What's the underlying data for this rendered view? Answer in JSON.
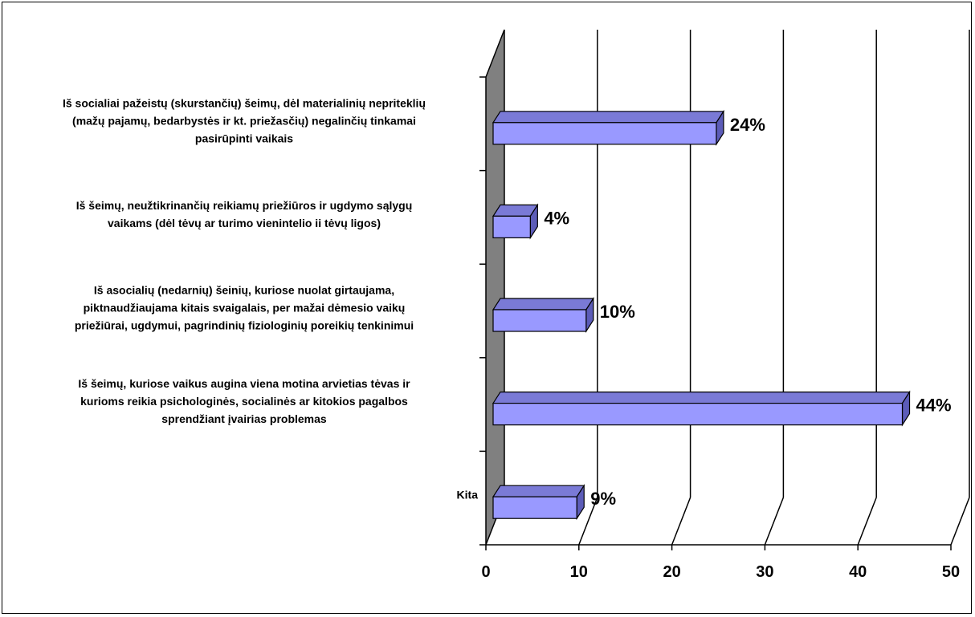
{
  "chart_data": {
    "type": "bar",
    "orientation": "horizontal",
    "three_d": true,
    "categories": [
      [
        "Iš socialiai pažeistų (skurstančių) šeimų, dėl materialinių nepriteklių",
        "(mažų pajamų, bedarbystės ir kt. priežasčių) negalinčių tinkamai",
        "pasirūpinti vaikais"
      ],
      [
        "Iš šeimų, neužtikrinančių reikiamų priežiūros ir ugdymo sąlygų",
        "vaikams (dėl tėvų ar turimo vienintelio ii tėvų ligos)"
      ],
      [
        "Iš asocialių (nedarnių) šeinių, kuriose nuolat girtaujama,",
        "piktnaudžiaujama kitais svaigalais, per mažai dėmesio vaikų",
        "priežiūrai, ugdymui, pagrindinių fiziologinių poreikių tenkinimui"
      ],
      [
        "Iš šeimų, kuriose vaikus augina viena motina arvietias tėvas ir",
        "kurioms reikia psichologinės, socialinės ar kitokios pagalbos",
        "sprendžiant įvairias problemas"
      ],
      [
        "Kita"
      ]
    ],
    "values": [
      24,
      4,
      10,
      44,
      9
    ],
    "data_labels": [
      "24%",
      "4%",
      "10%",
      "44%",
      "9%"
    ],
    "xlim": [
      0,
      50
    ],
    "x_ticks": [
      "0",
      "10",
      "20",
      "30",
      "40",
      "50"
    ],
    "grid": true,
    "colors": {
      "bar_front": "#9999ff",
      "bar_top": "#7a7ad6",
      "bar_side": "#5c5cb8",
      "wall": "#808080",
      "gridline": "#000000"
    }
  }
}
